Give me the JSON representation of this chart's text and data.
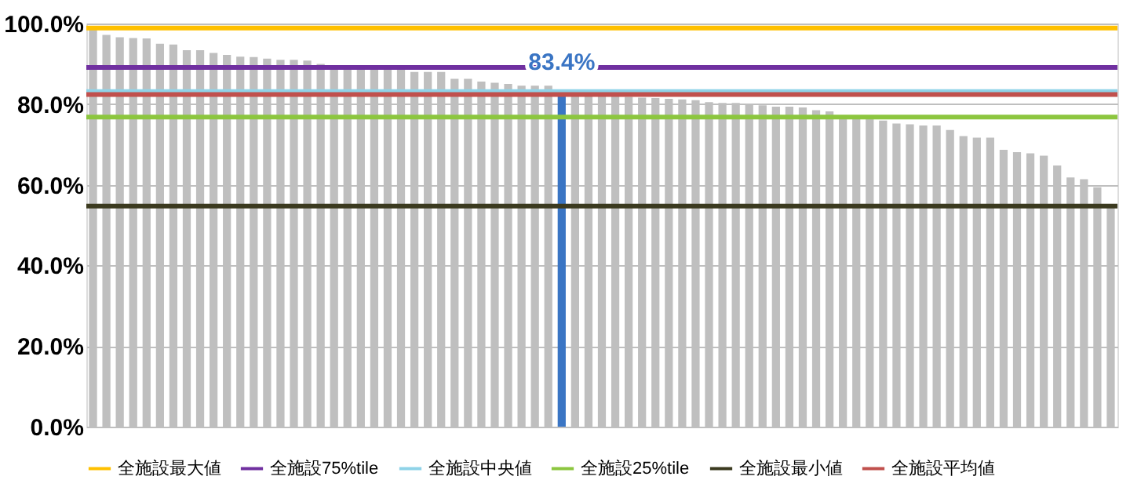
{
  "chart_data": {
    "type": "bar",
    "categories": [
      null,
      null,
      null,
      null,
      null,
      null,
      null,
      null,
      null,
      null,
      null,
      null,
      null,
      null,
      null,
      null,
      null,
      null,
      null,
      null,
      null,
      null,
      null,
      null,
      null,
      null,
      null,
      null,
      null,
      null,
      null,
      null,
      null,
      null,
      null,
      null,
      null,
      null,
      null,
      null,
      null,
      null,
      null,
      null,
      null,
      null,
      null,
      null,
      null,
      null,
      null,
      null,
      null,
      null,
      null,
      null,
      null,
      null,
      null,
      null,
      null,
      null,
      null,
      null,
      null,
      null,
      null,
      null,
      null,
      null,
      null,
      null,
      null,
      null,
      null,
      null,
      null
    ],
    "values": [
      98.9,
      97.2,
      96.6,
      96.4,
      96.3,
      95.0,
      94.8,
      93.4,
      93.4,
      92.7,
      92.2,
      91.8,
      91.7,
      91.3,
      91.0,
      91.0,
      90.8,
      90.0,
      89.7,
      89.5,
      89.3,
      88.9,
      88.8,
      88.8,
      88.0,
      88.0,
      88.0,
      86.3,
      86.3,
      85.6,
      85.3,
      85.0,
      84.6,
      84.6,
      84.6,
      83.4,
      83.3,
      82.6,
      82.3,
      82.0,
      81.8,
      81.6,
      81.5,
      81.3,
      81.2,
      81.0,
      80.5,
      80.3,
      80.3,
      80.0,
      79.7,
      79.4,
      79.4,
      79.2,
      78.5,
      78.2,
      76.6,
      76.3,
      76.3,
      75.9,
      75.2,
      75.0,
      74.7,
      74.7,
      73.6,
      72.1,
      71.7,
      71.7,
      68.7,
      68.1,
      67.8,
      67.2,
      64.8,
      61.8,
      61.4,
      59.4,
      54.7
    ],
    "colors": [
      "#bfbfbf",
      "#bfbfbf",
      "#bfbfbf",
      "#bfbfbf",
      "#bfbfbf",
      "#bfbfbf",
      "#bfbfbf",
      "#bfbfbf",
      "#bfbfbf",
      "#bfbfbf",
      "#bfbfbf",
      "#bfbfbf",
      "#bfbfbf",
      "#bfbfbf",
      "#bfbfbf",
      "#bfbfbf",
      "#bfbfbf",
      "#bfbfbf",
      "#bfbfbf",
      "#bfbfbf",
      "#bfbfbf",
      "#bfbfbf",
      "#bfbfbf",
      "#bfbfbf",
      "#bfbfbf",
      "#bfbfbf",
      "#bfbfbf",
      "#bfbfbf",
      "#bfbfbf",
      "#bfbfbf",
      "#bfbfbf",
      "#bfbfbf",
      "#bfbfbf",
      "#bfbfbf",
      "#bfbfbf",
      "#3a75c4",
      "#bfbfbf",
      "#bfbfbf",
      "#bfbfbf",
      "#bfbfbf",
      "#bfbfbf",
      "#bfbfbf",
      "#bfbfbf",
      "#bfbfbf",
      "#bfbfbf",
      "#bfbfbf",
      "#bfbfbf",
      "#bfbfbf",
      "#bfbfbf",
      "#bfbfbf",
      "#bfbfbf",
      "#bfbfbf",
      "#bfbfbf",
      "#bfbfbf",
      "#bfbfbf",
      "#bfbfbf",
      "#bfbfbf",
      "#bfbfbf",
      "#bfbfbf",
      "#bfbfbf",
      "#bfbfbf",
      "#bfbfbf",
      "#bfbfbf",
      "#bfbfbf",
      "#bfbfbf",
      "#bfbfbf",
      "#bfbfbf",
      "#bfbfbf",
      "#bfbfbf",
      "#bfbfbf",
      "#bfbfbf",
      "#bfbfbf",
      "#bfbfbf",
      "#bfbfbf",
      "#bfbfbf",
      "#bfbfbf",
      "#bfbfbf"
    ],
    "value_labels": [
      null,
      null,
      null,
      null,
      null,
      null,
      null,
      null,
      null,
      null,
      null,
      null,
      null,
      null,
      null,
      null,
      null,
      null,
      null,
      null,
      null,
      null,
      null,
      null,
      null,
      null,
      null,
      null,
      null,
      null,
      null,
      null,
      null,
      null,
      null,
      "83.4%",
      null,
      null,
      null,
      null,
      null,
      null,
      null,
      null,
      null,
      null,
      null,
      null,
      null,
      null,
      null,
      null,
      null,
      null,
      null,
      null,
      null,
      null,
      null,
      null,
      null,
      null,
      null,
      null,
      null,
      null,
      null,
      null,
      null,
      null,
      null,
      null,
      null,
      null,
      null,
      null,
      null
    ],
    "ylim": [
      0,
      100
    ],
    "yticks": [
      {
        "value": 0,
        "label": "0.0%"
      },
      {
        "value": 20,
        "label": "20.0%"
      },
      {
        "value": 40,
        "label": "40.0%"
      },
      {
        "value": 60,
        "label": "60.0%"
      },
      {
        "value": 80,
        "label": "80.0%"
      },
      {
        "value": 100,
        "label": "100.0%"
      }
    ],
    "grid": "y",
    "legend": "bottom",
    "ref_lines": [
      {
        "axis": "y",
        "value": 98.9,
        "label": "全施設最大値",
        "color": "#ffc000"
      },
      {
        "axis": "y",
        "value": 89.1,
        "label": "全施設75%tile",
        "color": "#7030a0"
      },
      {
        "axis": "y",
        "value": 83.1,
        "label": "全施設中央値",
        "color": "#8fd3e8"
      },
      {
        "axis": "y",
        "value": 76.8,
        "label": "全施設25%tile",
        "color": "#8cc63f"
      },
      {
        "axis": "y",
        "value": 54.7,
        "label": "全施設最小値",
        "color": "#3b3a1f"
      },
      {
        "axis": "y",
        "value": 82.4,
        "label": "全施設平均値",
        "color": "#c0504d"
      }
    ]
  }
}
